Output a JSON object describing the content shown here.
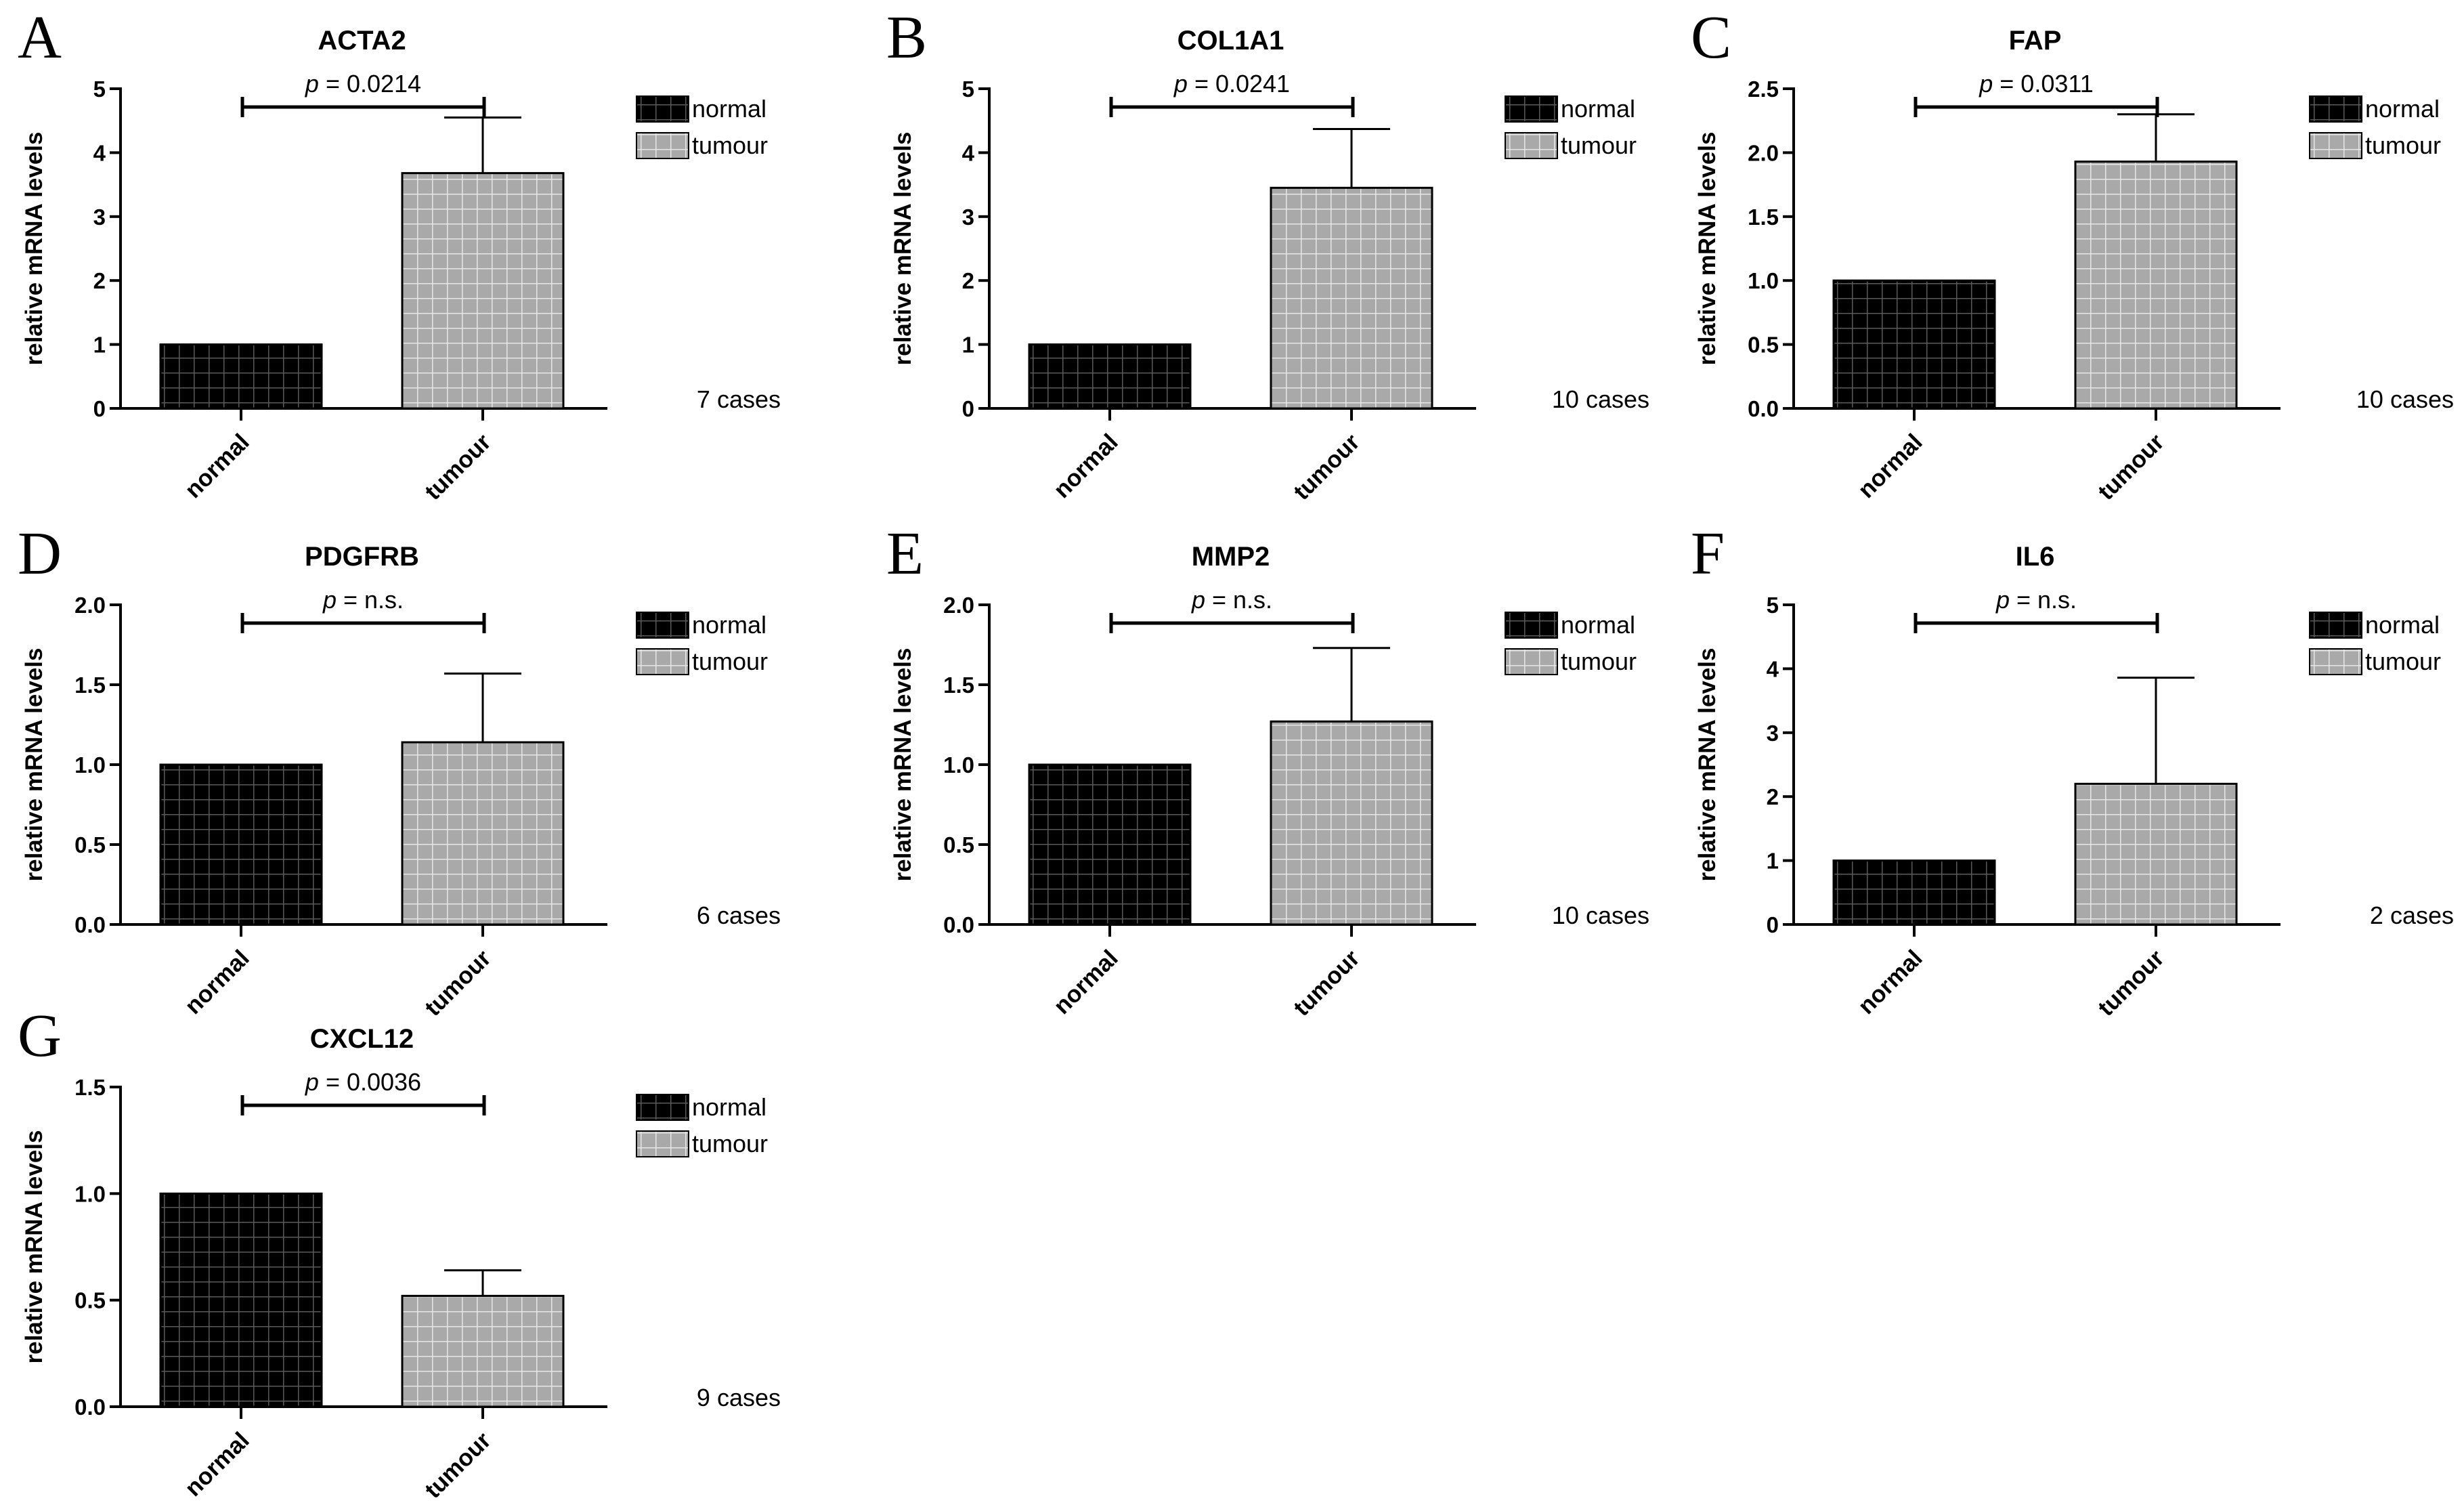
{
  "figure": {
    "legend_labels": [
      "normal",
      "tumour"
    ],
    "p_symbol": "p",
    "colors": {
      "normal_fill": "#000000",
      "normal_grid": "#5a5a5a",
      "tumour_fill": "#a9a9a9",
      "tumour_grid": "#e6e6e6",
      "axis": "#000000"
    }
  },
  "chart_data": [
    {
      "type": "bar",
      "panel": "A",
      "title": "ACTA2",
      "categories": [
        "normal",
        "tumour"
      ],
      "values": [
        1.0,
        3.68
      ],
      "error_upper": [
        null,
        4.55
      ],
      "ylabel": "relative mRNA levels",
      "xlabel": "",
      "ylim": [
        0,
        5
      ],
      "yticks": [
        "0",
        "1",
        "2",
        "3",
        "4",
        "5"
      ],
      "legend": [
        "normal",
        "tumour"
      ],
      "legend_position": "right",
      "p_value": "= 0.0214",
      "cases": "7 cases",
      "grid": false
    },
    {
      "type": "bar",
      "panel": "B",
      "title": "COL1A1",
      "categories": [
        "normal",
        "tumour"
      ],
      "values": [
        1.0,
        3.45
      ],
      "error_upper": [
        null,
        4.37
      ],
      "ylabel": "relative mRNA levels",
      "xlabel": "",
      "ylim": [
        0,
        5
      ],
      "yticks": [
        "0",
        "1",
        "2",
        "3",
        "4",
        "5"
      ],
      "legend": [
        "normal",
        "tumour"
      ],
      "legend_position": "right",
      "p_value": "= 0.0241",
      "cases": "10 cases",
      "grid": false
    },
    {
      "type": "bar",
      "panel": "C",
      "title": "FAP",
      "categories": [
        "normal",
        "tumour"
      ],
      "values": [
        1.0,
        1.93
      ],
      "error_upper": [
        null,
        2.3
      ],
      "ylabel": "relative mRNA levels",
      "xlabel": "",
      "ylim": [
        0,
        2.5
      ],
      "yticks": [
        "0.0",
        "0.5",
        "1.0",
        "1.5",
        "2.0",
        "2.5"
      ],
      "legend": [
        "normal",
        "tumour"
      ],
      "legend_position": "right",
      "p_value": "= 0.0311",
      "cases": "10 cases",
      "grid": false
    },
    {
      "type": "bar",
      "panel": "D",
      "title": "PDGFRB",
      "categories": [
        "normal",
        "tumour"
      ],
      "values": [
        1.0,
        1.14
      ],
      "error_upper": [
        null,
        1.57
      ],
      "ylabel": "relative mRNA levels",
      "xlabel": "",
      "ylim": [
        0,
        2
      ],
      "yticks": [
        "0.0",
        "0.5",
        "1.0",
        "1.5",
        "2.0"
      ],
      "legend": [
        "normal",
        "tumour"
      ],
      "legend_position": "right",
      "p_value": "= n.s.",
      "cases": "6 cases",
      "grid": false
    },
    {
      "type": "bar",
      "panel": "E",
      "title": "MMP2",
      "categories": [
        "normal",
        "tumour"
      ],
      "values": [
        1.0,
        1.27
      ],
      "error_upper": [
        null,
        1.73
      ],
      "ylabel": "relative mRNA levels",
      "xlabel": "",
      "ylim": [
        0,
        2
      ],
      "yticks": [
        "0.0",
        "0.5",
        "1.0",
        "1.5",
        "2.0"
      ],
      "legend": [
        "normal",
        "tumour"
      ],
      "legend_position": "right",
      "p_value": "= n.s.",
      "cases": "10 cases",
      "grid": false
    },
    {
      "type": "bar",
      "panel": "F",
      "title": "IL6",
      "categories": [
        "normal",
        "tumour"
      ],
      "values": [
        1.0,
        2.2
      ],
      "error_upper": [
        null,
        3.86
      ],
      "ylabel": "relative mRNA levels",
      "xlabel": "",
      "ylim": [
        0,
        5
      ],
      "yticks": [
        "0",
        "1",
        "2",
        "3",
        "4",
        "5"
      ],
      "legend": [
        "normal",
        "tumour"
      ],
      "legend_position": "right",
      "p_value": "= n.s.",
      "cases": "2 cases",
      "grid": false
    },
    {
      "type": "bar",
      "panel": "G",
      "title": "CXCL12",
      "categories": [
        "normal",
        "tumour"
      ],
      "values": [
        1.0,
        0.52
      ],
      "error_upper": [
        null,
        0.64
      ],
      "ylabel": "relative mRNA levels",
      "xlabel": "",
      "ylim": [
        0,
        1.5
      ],
      "yticks": [
        "0.0",
        "0.5",
        "1.0",
        "1.5"
      ],
      "legend": [
        "normal",
        "tumour"
      ],
      "legend_position": "right",
      "p_value": "= 0.0036",
      "cases": "9 cases",
      "grid": false
    }
  ]
}
